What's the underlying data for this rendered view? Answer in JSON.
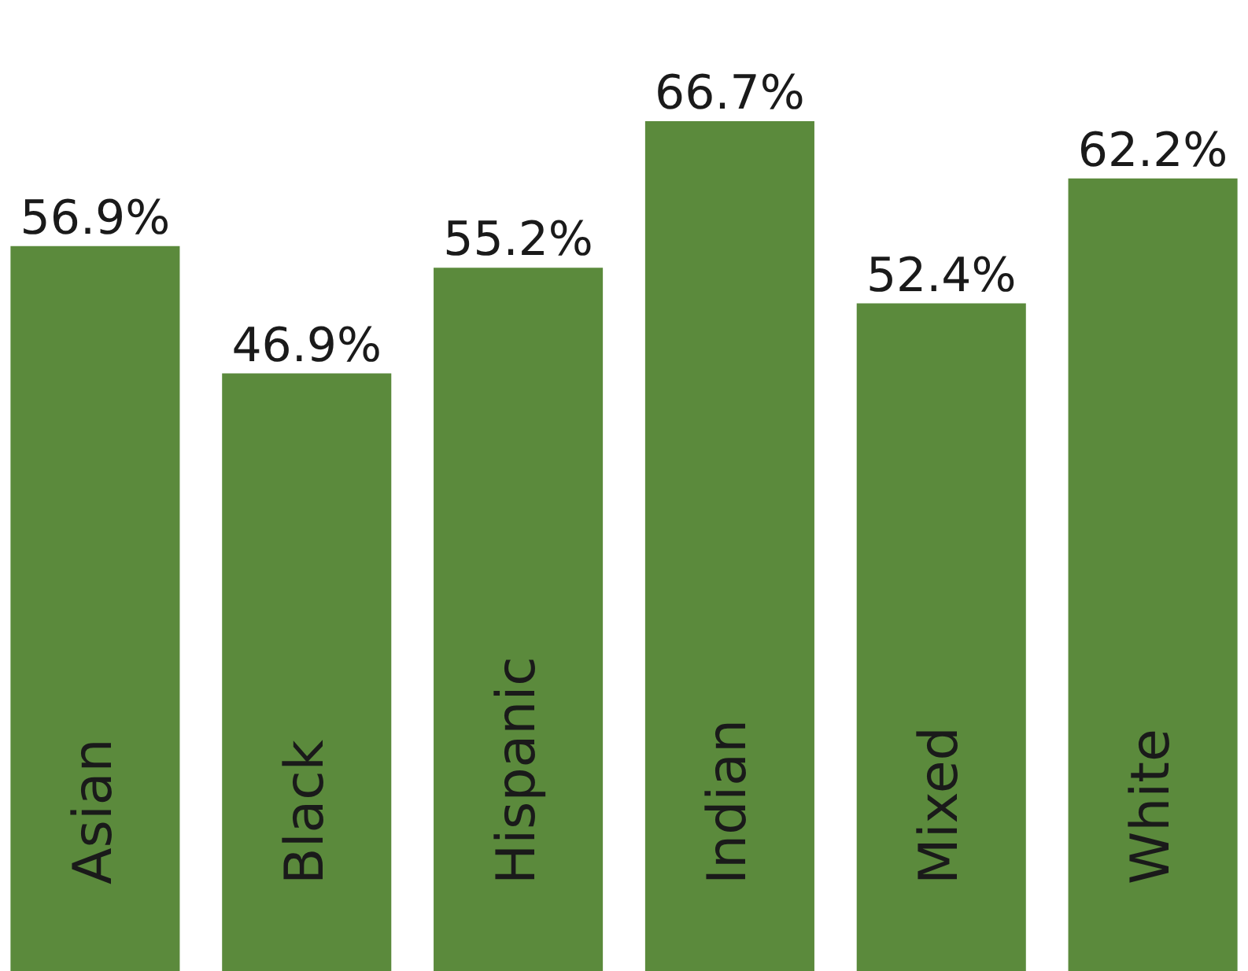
{
  "chart_data": {
    "type": "bar",
    "categories": [
      "Asian",
      "Black",
      "Hispanic",
      "Indian",
      "Mixed",
      "White"
    ],
    "values": [
      56.9,
      46.9,
      55.2,
      66.7,
      52.4,
      62.2
    ],
    "value_labels": [
      "56.9%",
      "46.9%",
      "55.2%",
      "66.7%",
      "52.4%",
      "62.2%"
    ],
    "color": "#5b8a3c",
    "tick_labels": false
  }
}
